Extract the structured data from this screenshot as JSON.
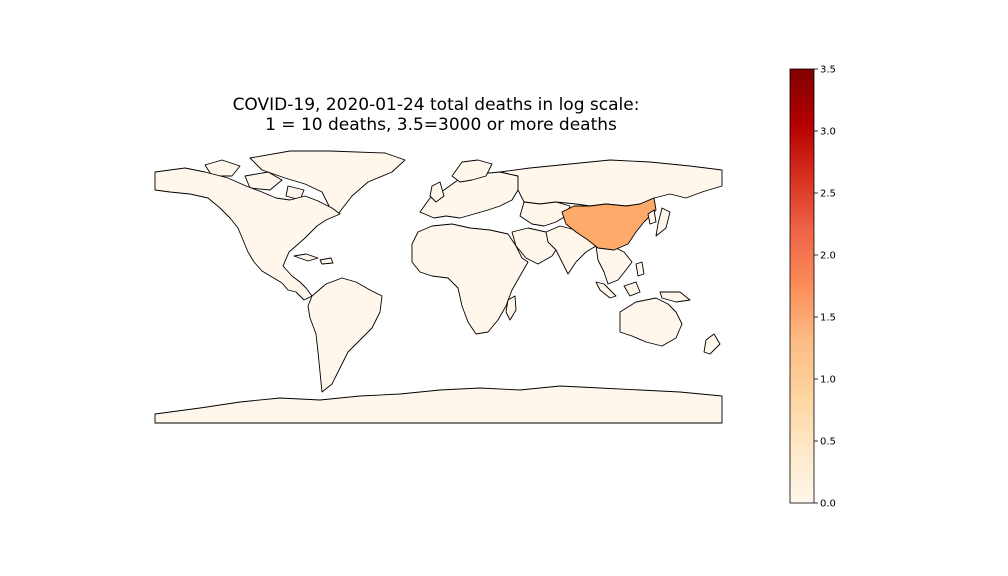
{
  "map": {
    "title_line1": "COVID-19, 2020-01-24 total deaths in log scale:",
    "title_line2": "1 = 10 deaths,  3.5=3000 or more deaths",
    "projection": "equirectangular",
    "land_base_color": "#fff7ec",
    "border_color": "#000000",
    "highlighted": [
      {
        "region": "China",
        "value": 1.4,
        "color": "#fdaa6a"
      }
    ]
  },
  "colorbar": {
    "colormap": "OrRd",
    "min": 0.0,
    "max": 3.5,
    "ticks": [
      "0.0",
      "0.5",
      "1.0",
      "1.5",
      "2.0",
      "2.5",
      "3.0",
      "3.5"
    ],
    "stops": [
      "#fff7ec",
      "#fee8c8",
      "#fdd49e",
      "#fdbb84",
      "#fc8d59",
      "#ef6548",
      "#d7301f",
      "#b30000",
      "#7f0000"
    ]
  }
}
